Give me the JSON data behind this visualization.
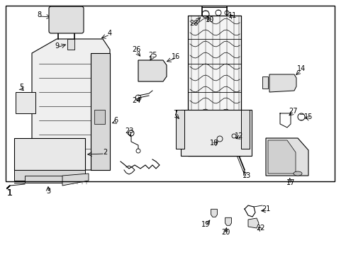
{
  "bg_color": "#ffffff",
  "border_color": "#000000",
  "image_data": "target_diagram"
}
